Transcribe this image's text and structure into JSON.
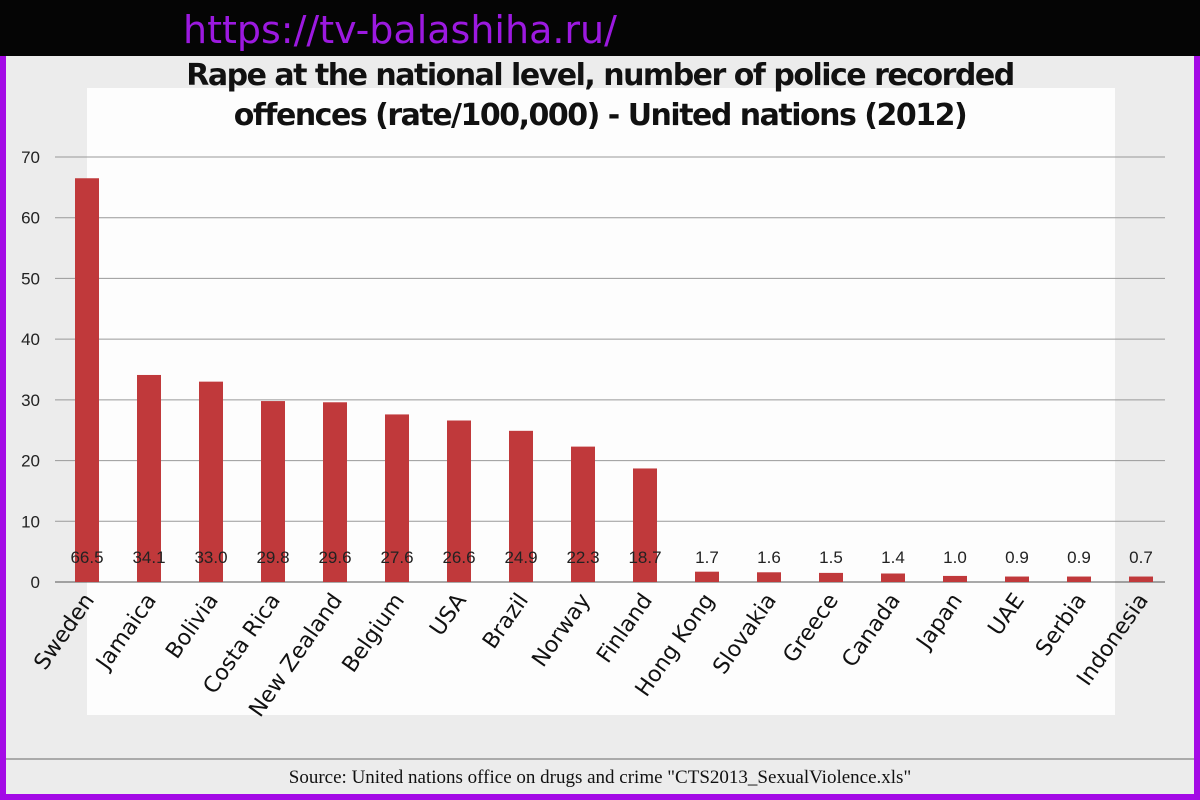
{
  "watermark": "https://tv-balashiha.ru/",
  "source": "Source: United nations office on drugs and crime \"CTS2013_SexualViolence.xls\"",
  "chart_data": {
    "type": "bar",
    "title_line1": "Rape at the national level, number of police recorded",
    "title_line2": "offences (rate/100,000) - United nations (2012)",
    "categories": [
      "Sweden",
      "Jamaica",
      "Bolivia",
      "Costa Rica",
      "New Zealand",
      "Belgium",
      "USA",
      "Brazil",
      "Norway",
      "Finland",
      "Hong Kong",
      "Slovakia",
      "Greece",
      "Canada",
      "Japan",
      "UAE",
      "Serbia",
      "Indonesia"
    ],
    "values": [
      66.5,
      34.1,
      33.0,
      29.8,
      29.6,
      27.6,
      26.6,
      24.9,
      22.3,
      18.7,
      1.7,
      1.6,
      1.5,
      1.4,
      1.0,
      0.9,
      0.9,
      0.7
    ],
    "value_labels": [
      "66.5",
      "34.1",
      "33.0",
      "29.8",
      "29.6",
      "27.6",
      "26.6",
      "24.9",
      "22.3",
      "18.7",
      "1.7",
      "1.6",
      "1.5",
      "1.4",
      "1.0",
      "0.9",
      "0.9",
      "0.7"
    ],
    "ylim": [
      0,
      70
    ],
    "yticks": [
      "0",
      "10",
      "20",
      "30",
      "40",
      "50",
      "60",
      "70"
    ],
    "grid": true,
    "bar_color": "#c0393b",
    "xlabel": "",
    "ylabel": ""
  }
}
